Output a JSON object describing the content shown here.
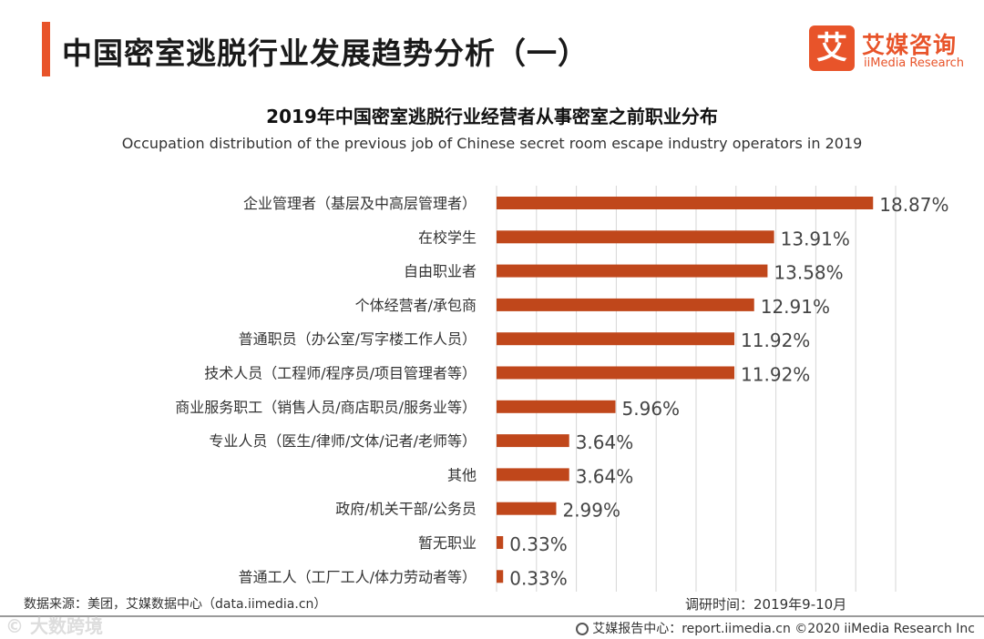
{
  "header": {
    "title": "中国密室逃脱行业发展趋势分析（一）"
  },
  "logo": {
    "glyph": "艾",
    "cn": "艾媒咨询",
    "en": "iiMedia Research",
    "color": "#e8542a"
  },
  "chart_data": {
    "type": "bar",
    "orientation": "horizontal",
    "title": "2019年中国密室逃脱行业经营者从事密室之前职业分布",
    "subtitle": "Occupation distribution of the previous job of Chinese secret room escape industry operators in 2019",
    "categories": [
      "企业管理者（基层及中高层管理者）",
      "在校学生",
      "自由职业者",
      "个体经营者/承包商",
      "普通职员（办公室/写字楼工作人员）",
      "技术人员（工程师/程序员/项目管理者等）",
      "商业服务职工（销售人员/商店职员/服务业等）",
      "专业人员（医生/律师/文体/记者/老师等）",
      "其他",
      "政府/机关干部/公务员",
      "暂无职业",
      "普通工人（工厂工人/体力劳动者等）"
    ],
    "values": [
      18.87,
      13.91,
      13.58,
      12.91,
      11.92,
      11.92,
      5.96,
      3.64,
      3.64,
      2.99,
      0.33,
      0.33
    ],
    "value_labels": [
      "18.87%",
      "13.91%",
      "13.58%",
      "12.91%",
      "11.92%",
      "11.92%",
      "5.96%",
      "3.64%",
      "3.64%",
      "2.99%",
      "0.33%",
      "0.33%"
    ],
    "xlim": [
      0,
      20
    ],
    "grid": true,
    "bar_color": "#c0471b"
  },
  "footer": {
    "source": "数据来源：美团，艾媒数据中心（data.iimedia.cn）",
    "survey_date": "调研时间：2019年9-10月",
    "report": "艾媒报告中心：report.iimedia.cn ©2020 iiMedia Research Inc",
    "watermark": "© 大数跨境"
  }
}
